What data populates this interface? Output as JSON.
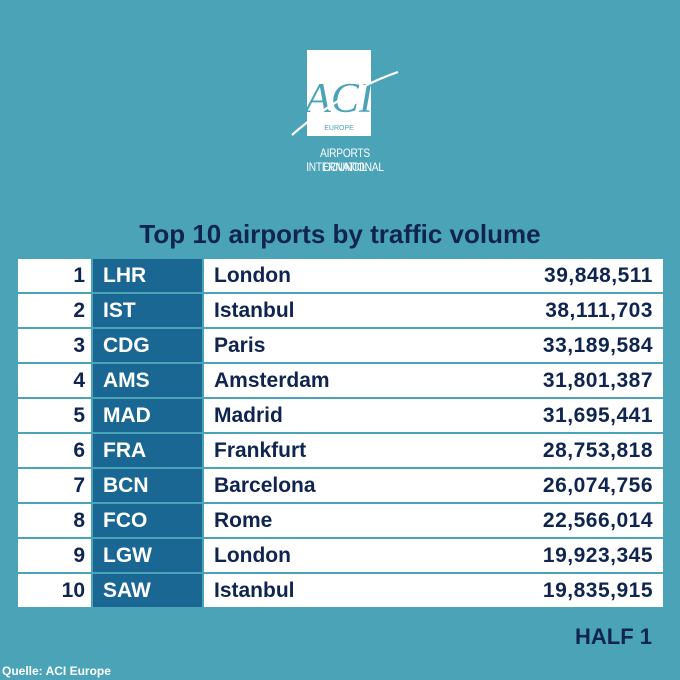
{
  "logo": {
    "mark": "ACI",
    "sub": "EUROPE",
    "line1": "AIRPORTS COUNCIL",
    "line2": "INTERNATIONAL"
  },
  "title": "Top 10 airports by traffic volume",
  "rows": [
    {
      "rank": "1",
      "code": "LHR",
      "city": "London",
      "value": "39,848,511"
    },
    {
      "rank": "2",
      "code": "IST",
      "city": "Istanbul",
      "value": "38,111,703"
    },
    {
      "rank": "3",
      "code": "CDG",
      "city": "Paris",
      "value": "33,189,584"
    },
    {
      "rank": "4",
      "code": "AMS",
      "city": "Amsterdam",
      "value": "31,801,387"
    },
    {
      "rank": "5",
      "code": "MAD",
      "city": "Madrid",
      "value": "31,695,441"
    },
    {
      "rank": "6",
      "code": "FRA",
      "city": "Frankfurt",
      "value": "28,753,818"
    },
    {
      "rank": "7",
      "code": "BCN",
      "city": "Barcelona",
      "value": "26,074,756"
    },
    {
      "rank": "8",
      "code": "FCO",
      "city": "Rome",
      "value": "22,566,014"
    },
    {
      "rank": "9",
      "code": "LGW",
      "city": "London",
      "value": "19,923,345"
    },
    {
      "rank": "10",
      "code": "SAW",
      "city": "Istanbul",
      "value": "19,835,915"
    }
  ],
  "period": "HALF 1",
  "source": "Quelle: ACI Europe",
  "colors": {
    "background": "#4ba3b8",
    "code_cell": "#1b6794",
    "text_dark": "#0f2550"
  }
}
